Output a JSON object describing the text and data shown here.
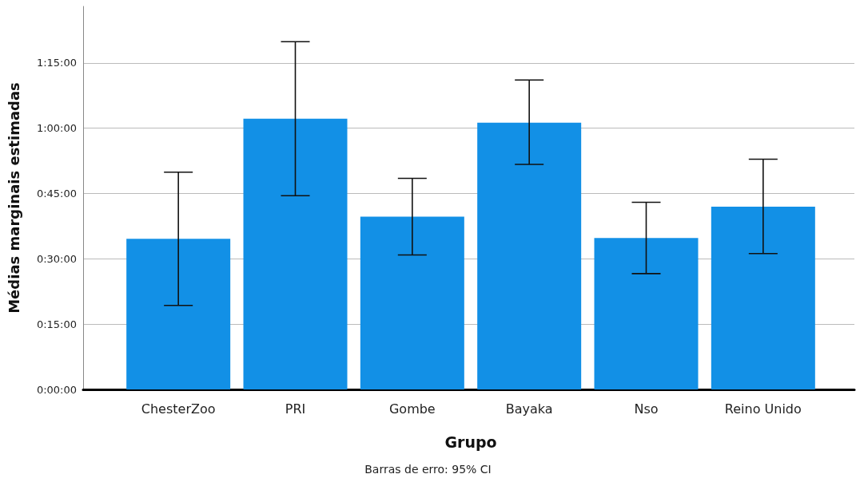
{
  "chart_data": {
    "type": "bar",
    "ylabel": "Médias marginais estimadas",
    "xlabel": "Grupo",
    "categories": [
      "ChesterZoo",
      "PRI",
      "Gombe",
      "Bayaka",
      "Nso",
      "Reino Unido"
    ],
    "values": [
      34.6,
      62.2,
      39.7,
      61.3,
      34.8,
      42.0
    ],
    "errors": [
      [
        19.3,
        49.9
      ],
      [
        44.5,
        79.9
      ],
      [
        30.9,
        48.5
      ],
      [
        51.7,
        71.1
      ],
      [
        26.6,
        43.0
      ],
      [
        31.2,
        52.9
      ]
    ],
    "color": "#1290e6",
    "ylim": [
      0,
      88
    ],
    "yticks": [
      {
        "value": 0,
        "label": "0:00:00"
      },
      {
        "value": 15,
        "label": "0:15:00"
      },
      {
        "value": 30,
        "label": "0:30:00"
      },
      {
        "value": 45,
        "label": "0:45:00"
      },
      {
        "value": 60,
        "label": "1:00:00"
      },
      {
        "value": 75,
        "label": "1:15:00"
      }
    ],
    "grid": "y",
    "annotations": [
      "Barras de erro: 95% CI"
    ]
  }
}
